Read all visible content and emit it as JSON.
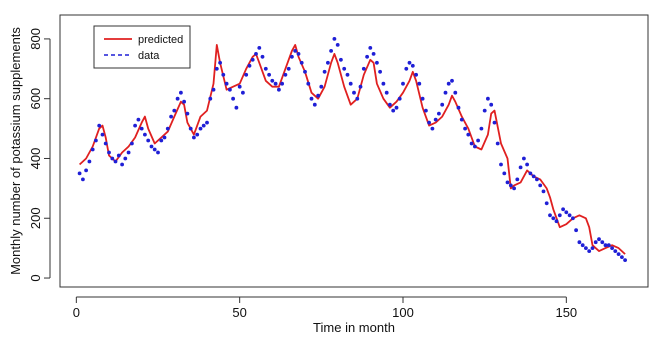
{
  "chart_data": {
    "type": "line",
    "title": "",
    "xlabel": "Time in month",
    "ylabel": "Monthly number of potassium supplements",
    "xlim": [
      -5,
      175
    ],
    "ylim": [
      -30,
      880
    ],
    "xticks": [
      0,
      50,
      100,
      150
    ],
    "yticks": [
      0,
      200,
      400,
      600,
      800
    ],
    "grid": false,
    "legend": {
      "position": "top-left",
      "entries": [
        {
          "label": "predicted",
          "color": "#e02020",
          "style": "solid"
        },
        {
          "label": "data",
          "color": "#1f1fd6",
          "style": "dashed"
        }
      ]
    },
    "series": [
      {
        "name": "predicted",
        "color": "#e02020",
        "style": "line",
        "x": [
          1,
          3,
          5,
          7,
          8,
          9,
          10,
          12,
          14,
          16,
          18,
          20,
          21,
          22,
          24,
          26,
          28,
          30,
          32,
          33,
          34,
          36,
          38,
          40,
          42,
          43,
          44,
          46,
          48,
          50,
          52,
          54,
          55,
          56,
          58,
          60,
          62,
          64,
          66,
          67,
          68,
          70,
          72,
          74,
          76,
          78,
          79,
          80,
          82,
          84,
          86,
          88,
          90,
          91,
          92,
          94,
          96,
          98,
          100,
          102,
          103,
          104,
          106,
          108,
          110,
          112,
          114,
          115,
          116,
          118,
          120,
          122,
          124,
          126,
          127,
          128,
          130,
          132,
          133,
          134,
          136,
          138,
          140,
          142,
          144,
          145,
          146,
          148,
          150,
          152,
          154,
          156,
          157,
          158,
          160,
          162,
          164,
          166,
          168
        ],
        "y": [
          380,
          400,
          440,
          500,
          510,
          470,
          410,
          390,
          420,
          440,
          470,
          520,
          540,
          500,
          450,
          470,
          490,
          540,
          590,
          580,
          520,
          480,
          540,
          560,
          650,
          780,
          720,
          630,
          640,
          650,
          700,
          740,
          750,
          720,
          660,
          640,
          640,
          700,
          760,
          780,
          740,
          690,
          620,
          600,
          640,
          720,
          750,
          720,
          640,
          580,
          600,
          680,
          730,
          720,
          650,
          600,
          570,
          590,
          620,
          660,
          690,
          660,
          570,
          510,
          520,
          540,
          580,
          610,
          590,
          540,
          500,
          440,
          430,
          480,
          550,
          560,
          450,
          400,
          300,
          310,
          320,
          360,
          340,
          330,
          300,
          270,
          230,
          170,
          180,
          200,
          210,
          200,
          170,
          110,
          90,
          100,
          110,
          100,
          80
        ]
      },
      {
        "name": "data",
        "color": "#1f1fd6",
        "style": "points",
        "x": [
          1,
          2,
          3,
          4,
          5,
          6,
          7,
          8,
          9,
          10,
          11,
          12,
          13,
          14,
          15,
          16,
          17,
          18,
          19,
          20,
          21,
          22,
          23,
          24,
          25,
          26,
          27,
          28,
          29,
          30,
          31,
          32,
          33,
          34,
          35,
          36,
          37,
          38,
          39,
          40,
          41,
          42,
          43,
          44,
          45,
          46,
          47,
          48,
          49,
          50,
          51,
          52,
          53,
          54,
          55,
          56,
          57,
          58,
          59,
          60,
          61,
          62,
          63,
          64,
          65,
          66,
          67,
          68,
          69,
          70,
          71,
          72,
          73,
          74,
          75,
          76,
          77,
          78,
          79,
          80,
          81,
          82,
          83,
          84,
          85,
          86,
          87,
          88,
          89,
          90,
          91,
          92,
          93,
          94,
          95,
          96,
          97,
          98,
          99,
          100,
          101,
          102,
          103,
          104,
          105,
          106,
          107,
          108,
          109,
          110,
          111,
          112,
          113,
          114,
          115,
          116,
          117,
          118,
          119,
          120,
          121,
          122,
          123,
          124,
          125,
          126,
          127,
          128,
          129,
          130,
          131,
          132,
          133,
          134,
          135,
          136,
          137,
          138,
          139,
          140,
          141,
          142,
          143,
          144,
          145,
          146,
          147,
          148,
          149,
          150,
          151,
          152,
          153,
          154,
          155,
          156,
          157,
          158,
          159,
          160,
          161,
          162,
          163,
          164,
          165,
          166,
          167,
          168
        ],
        "y": [
          350,
          330,
          360,
          390,
          430,
          460,
          510,
          480,
          450,
          420,
          400,
          390,
          410,
          380,
          400,
          420,
          450,
          510,
          530,
          500,
          480,
          460,
          440,
          430,
          420,
          460,
          470,
          500,
          540,
          560,
          600,
          620,
          590,
          550,
          500,
          470,
          480,
          500,
          510,
          520,
          600,
          630,
          700,
          720,
          680,
          650,
          630,
          600,
          570,
          640,
          620,
          680,
          710,
          730,
          750,
          770,
          740,
          700,
          680,
          660,
          650,
          630,
          650,
          680,
          700,
          740,
          760,
          750,
          720,
          690,
          650,
          600,
          580,
          610,
          640,
          690,
          720,
          760,
          800,
          780,
          730,
          700,
          680,
          650,
          620,
          600,
          640,
          700,
          740,
          770,
          750,
          720,
          690,
          650,
          620,
          580,
          560,
          570,
          600,
          650,
          700,
          720,
          710,
          680,
          650,
          600,
          560,
          520,
          500,
          530,
          550,
          580,
          620,
          650,
          660,
          620,
          570,
          530,
          500,
          480,
          450,
          440,
          460,
          500,
          560,
          600,
          580,
          520,
          450,
          380,
          350,
          320,
          310,
          300,
          330,
          370,
          400,
          380,
          350,
          340,
          330,
          310,
          290,
          250,
          210,
          200,
          190,
          210,
          230,
          220,
          210,
          200,
          160,
          120,
          110,
          100,
          90,
          100,
          120,
          130,
          120,
          110,
          110,
          100,
          90,
          80,
          70,
          60
        ]
      }
    ]
  }
}
